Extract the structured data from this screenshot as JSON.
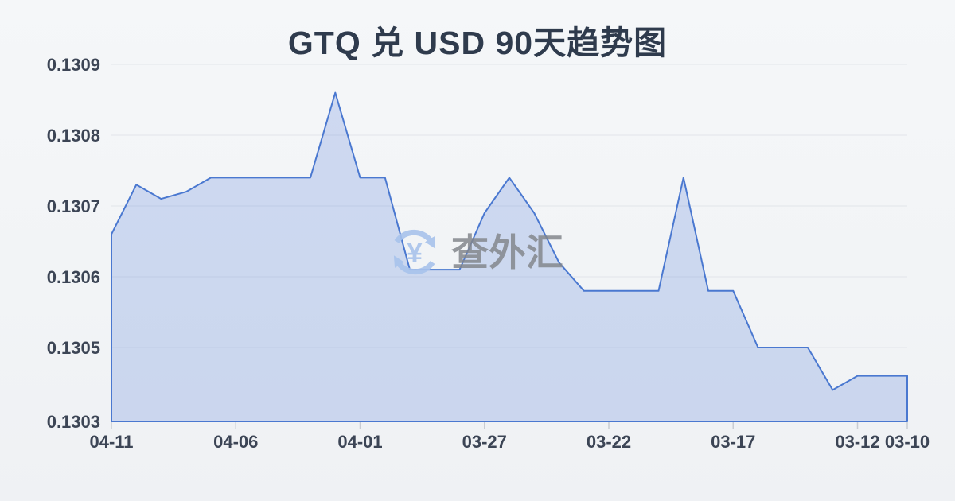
{
  "chart_data": {
    "type": "area",
    "title": "GTQ 兑 USD 90天趋势图",
    "xlabel": "",
    "ylabel": "",
    "x": [
      "04-11",
      "04-10",
      "04-09",
      "04-08",
      "04-07",
      "04-06",
      "04-05",
      "04-04",
      "04-03",
      "04-02",
      "04-01",
      "03-31",
      "03-30",
      "03-29",
      "03-28",
      "03-27",
      "03-26",
      "03-25",
      "03-24",
      "03-23",
      "03-22",
      "03-21",
      "03-20",
      "03-19",
      "03-18",
      "03-17",
      "03-16",
      "03-15",
      "03-14",
      "03-13",
      "03-12",
      "03-11",
      "03-10"
    ],
    "values": [
      0.13066,
      0.13073,
      0.13071,
      0.13072,
      0.13074,
      0.13074,
      0.13074,
      0.13074,
      0.13074,
      0.13086,
      0.13074,
      0.13074,
      0.13061,
      0.13061,
      0.13061,
      0.13069,
      0.13074,
      0.13069,
      0.13062,
      0.13058,
      0.13058,
      0.13058,
      0.13058,
      0.13074,
      0.13058,
      0.13058,
      0.1305,
      0.1305,
      0.1305,
      0.13044,
      0.13046,
      0.13046,
      0.13046
    ],
    "x_tick_labels": [
      "04-11",
      "04-06",
      "04-01",
      "03-27",
      "03-22",
      "03-17",
      "03-12",
      "03-10"
    ],
    "y_tick_labels": [
      "0.1309",
      "0.1308",
      "0.1307",
      "0.1306",
      "0.1305",
      "0.1303"
    ],
    "y_axis": {
      "max_value": 0.1309,
      "tick_interval": 0.0001
    },
    "ylim": [
      0.1303,
      0.1309
    ],
    "grid": true,
    "legend": false,
    "x_direction": "newest-to-oldest"
  },
  "watermark": {
    "text": "查外汇",
    "icon_symbol": "¥"
  },
  "colors": {
    "background": "#f2f4f6",
    "title": "#2f3b4d",
    "axis_label": "#3c4555",
    "gridline": "#e2e5ea",
    "axis_line": "#d9dce1",
    "tick": "#c9ccd3",
    "line": "#4a78d0",
    "fill": "rgba(92,130,220,0.25)",
    "watermark_text": "#84878d",
    "watermark_icon": "#a8c3ec"
  }
}
